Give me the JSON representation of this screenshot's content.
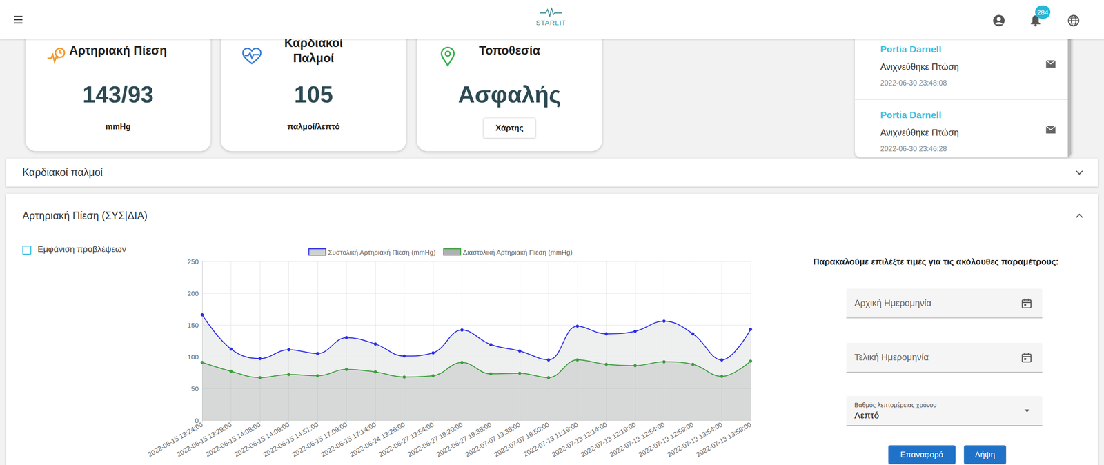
{
  "header": {
    "logo": "STARLIT",
    "notifications": 284
  },
  "cards": [
    {
      "title": "Αρτηριακή Πίεση",
      "value": "143/93",
      "unit": "mmHg"
    },
    {
      "title": "Καρδιακοί Παλμοί",
      "value": 105,
      "unit": "παλμοί/λεπτό"
    },
    {
      "title": "Τοποθεσία",
      "value": "Ασφαλής",
      "button": "Χάρτης"
    }
  ],
  "alerts": [
    {
      "name": "Portia Darnell",
      "message": "Ανιχνεύθηκε Πτώση",
      "time": "2022-06-30 23:48:08"
    },
    {
      "name": "Portia Darnell",
      "message": "Ανιχνεύθηκε Πτώση",
      "time": "2022-06-30 23:46:28"
    }
  ],
  "panels": [
    {
      "title": "Καρδιακοί παλμοί",
      "expanded": false
    },
    {
      "title": "Αρτηριακή Πίεση (ΣΥΣ|ΔΙΑ)",
      "expanded": true
    }
  ],
  "checkbox": "Εμφάνιση προβλέψεων",
  "chart_data": {
    "type": "line",
    "x": [
      "2022-06-15 13:24:00",
      "2022-06-15 13:29:00",
      "2022-06-15 14:08:00",
      "2022-06-15 14:09:00",
      "2022-06-15 14:51:00",
      "2022-06-15 17:09:00",
      "2022-06-15 17:14:00",
      "2022-06-24 13:26:00",
      "2022-06-27 13:54:00",
      "2022-06-27 18:20:00",
      "2022-06-27 18:35:00",
      "2022-07-07 13:35:00",
      "2022-07-07 18:50:00",
      "2022-07-13 11:19:00",
      "2022-07-13 12:14:00",
      "2022-07-13 12:19:00",
      "2022-07-13 12:54:00",
      "2022-07-13 12:59:00",
      "2022-07-13 13:54:00",
      "2022-07-13 13:59:00"
    ],
    "series": [
      {
        "name": "Συστολική Αρτηριακή Πίεση (mmHg)",
        "color": "#2e2ee6",
        "values": [
          166,
          112,
          97,
          111,
          105,
          130,
          120,
          101,
          106,
          142,
          119,
          109,
          95,
          148,
          136,
          140,
          156,
          136,
          95,
          143
        ]
      },
      {
        "name": "Διαστολική Αρτηριακή Πίεση (mmHg)",
        "color": "#3c9c3c",
        "values": [
          91,
          77,
          67,
          72,
          70,
          80,
          76,
          68,
          70,
          91,
          73,
          74,
          67,
          95,
          88,
          86,
          92,
          88,
          69,
          93
        ]
      }
    ],
    "ylim": [
      0,
      250
    ],
    "yticks": [
      0,
      50,
      100,
      150,
      200,
      250
    ],
    "grid": true,
    "legend": "top",
    "marker": "circle",
    "line_style": "solid"
  },
  "form": {
    "prompt": "Παρακαλούμε επιλέξτε τιμές για τις ακόλουθες παραμέτρους:",
    "fields": [
      {
        "label": "Αρχική Ημερομηνία"
      },
      {
        "label": "Τελική Ημερομηνία"
      },
      {
        "label": "Βαθμός λεπτομέρειας χρόνου",
        "value": "Λεπτό"
      }
    ],
    "buttons": [
      "Επαναφορά",
      "Λήψη"
    ]
  }
}
